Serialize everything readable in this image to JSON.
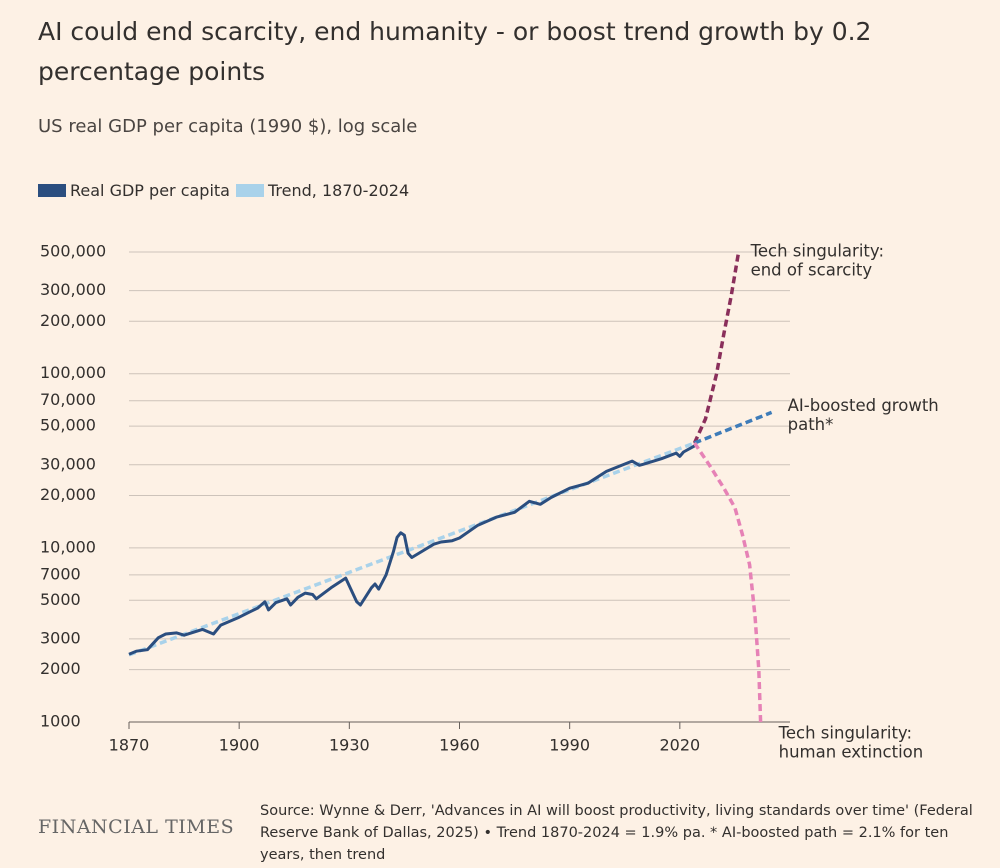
{
  "chart_data": {
    "type": "line",
    "title": "AI could end scarcity, end humanity - or boost trend growth by 0.2 percentage points",
    "subtitle": "US real GDP per capita (1990 $), log scale",
    "yscale": "log",
    "grid": true,
    "xlim": [
      1870,
      2050
    ],
    "xticks": [
      1870,
      1900,
      1930,
      1960,
      1990,
      2020
    ],
    "ylim": [
      1000,
      500000
    ],
    "yticks": [
      1000,
      2000,
      3000,
      5000,
      7000,
      {
        "value": 10000,
        "label": "10,000"
      },
      {
        "value": 20000,
        "label": "20,000"
      },
      {
        "value": 30000,
        "label": "30,000"
      },
      {
        "value": 50000,
        "label": "50,000"
      },
      {
        "value": 70000,
        "label": "70,000"
      },
      {
        "value": 100000,
        "label": "100,000"
      },
      {
        "value": 200000,
        "label": "200,000"
      },
      {
        "value": 300000,
        "label": "300,000"
      },
      {
        "value": 500000,
        "label": "500,000"
      }
    ],
    "series": [
      {
        "name": "Real GDP per capita",
        "color": "#2b4e7f",
        "dash": false,
        "x": [
          1870,
          1872,
          1875,
          1878,
          1880,
          1883,
          1885,
          1890,
          1893,
          1895,
          1900,
          1903,
          1905,
          1907,
          1908,
          1910,
          1913,
          1914,
          1916,
          1918,
          1920,
          1921,
          1925,
          1929,
          1932,
          1933,
          1936,
          1937,
          1938,
          1940,
          1942,
          1943,
          1944,
          1945,
          1946,
          1947,
          1950,
          1953,
          1955,
          1958,
          1960,
          1965,
          1970,
          1975,
          1979,
          1982,
          1985,
          1990,
          1995,
          2000,
          2007,
          2009,
          2010,
          2015,
          2019,
          2020,
          2021,
          2024
        ],
        "values": [
          2450,
          2550,
          2600,
          3050,
          3200,
          3250,
          3150,
          3400,
          3200,
          3600,
          4000,
          4300,
          4500,
          4900,
          4400,
          4850,
          5100,
          4700,
          5200,
          5500,
          5400,
          5100,
          5900,
          6700,
          4900,
          4700,
          5900,
          6200,
          5800,
          7000,
          9500,
          11500,
          12200,
          11800,
          9300,
          8800,
          9600,
          10500,
          10800,
          11000,
          11400,
          13500,
          15000,
          16000,
          18500,
          17800,
          19500,
          22000,
          23500,
          27500,
          31500,
          29800,
          30200,
          32500,
          35000,
          33500,
          35500,
          38500
        ]
      },
      {
        "name": "Trend, 1870-2024",
        "color": "#a9d2ea",
        "dash": true,
        "x": [
          1870,
          2024
        ],
        "values": [
          2430,
          40000
        ]
      }
    ],
    "scenarios": [
      {
        "label": [
          "Tech singularity:",
          "end of scarcity"
        ],
        "color": "#8a2f5b",
        "x": [
          2024,
          2027,
          2030,
          2032,
          2034,
          2036
        ],
        "values": [
          40000,
          55000,
          100000,
          170000,
          280000,
          500000
        ]
      },
      {
        "label": [
          "AI-boosted growth",
          "path*"
        ],
        "color": "#3e7cb9",
        "x": [
          2024,
          2045
        ],
        "values": [
          40000,
          60000
        ]
      },
      {
        "label": [
          "Tech singularity:",
          "human extinction"
        ],
        "color": "#e682b6",
        "x": [
          2024,
          2028,
          2032,
          2035,
          2037,
          2039,
          2040.5,
          2041.5,
          2042
        ],
        "values": [
          40000,
          30000,
          22000,
          17000,
          12000,
          8000,
          4000,
          2000,
          1000
        ]
      }
    ],
    "brand": "FINANCIAL TIMES",
    "source": "Source: Wynne & Derr, 'Advances in AI will boost productivity, living standards over time' (Federal Reserve Bank of Dallas, 2025) • Trend 1870-2024 = 1.9% pa. * AI-boosted path = 2.1% for ten years, then trend"
  }
}
